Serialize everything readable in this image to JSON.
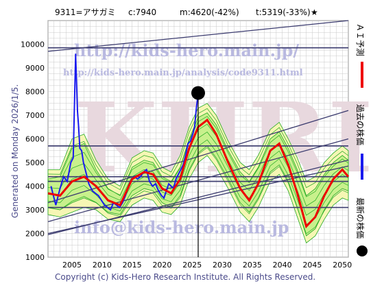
{
  "header": {
    "code_name": "9311=アサガミ",
    "current": "c:7940",
    "mid": "m:4620(-42%)",
    "target": "t:5319(-33%)",
    "star": "★"
  },
  "generated_text": "Generated on Monday 2026/1/5.",
  "footer_text": "Copyright (c) Kids-Hero Research Institute. All Rights Reserved.",
  "watermarks": {
    "url_main": "http://kids-hero.main.jp/",
    "url_page": "http://kids-hero.main.jp/analysis/code9311.html",
    "big": "KHRI",
    "email": "info@kids-hero.main.jp"
  },
  "legend": {
    "ai_forecast": "ＡＩ予測",
    "past_price": "過去の株価",
    "latest_price": "最新の株価"
  },
  "colors": {
    "ai_forecast": "#ee0000",
    "past_price": "#1a1aee",
    "latest_price": "#000000",
    "band_fill": "#c8f08c",
    "band_outer_fill": "#f6f6b4",
    "band_lines": "#22aa22",
    "trend_lines": "#3a3a6e",
    "grid": "#c8c8c8"
  },
  "chart_data": {
    "type": "line",
    "xlim": [
      2001,
      2051
    ],
    "ylim": [
      1000,
      11000
    ],
    "x_ticks": [
      2005,
      2010,
      2015,
      2020,
      2025,
      2030,
      2035,
      2040,
      2045,
      2050
    ],
    "y_ticks": [
      1000,
      2000,
      3000,
      4000,
      5000,
      6000,
      7000,
      8000,
      9000,
      10000
    ],
    "x_tick_labels": [
      "2005",
      "2010",
      "2015",
      "2020",
      "2025",
      "2030",
      "2035",
      "2040",
      "2045",
      "2050"
    ],
    "y_tick_labels": [
      "1000",
      "2000",
      "3000",
      "4000",
      "5000",
      "6000",
      "7000",
      "8000",
      "9000",
      "10000"
    ],
    "grid": true,
    "current_marker": {
      "x": 2026.0,
      "y": 7940
    },
    "series": [
      {
        "name": "過去の株価",
        "x": [
          2001.5,
          2002.3,
          2003.0,
          2003.6,
          2004.2,
          2004.8,
          2005.2,
          2005.6,
          2005.9,
          2006.1,
          2006.3,
          2006.6,
          2006.9,
          2007.3,
          2007.8,
          2008.4,
          2008.9,
          2009.4,
          2009.9,
          2010.4,
          2010.9,
          2011.4,
          2011.9,
          2012.4,
          2012.9,
          2013.4,
          2013.9,
          2014.4,
          2014.9,
          2015.4,
          2015.9,
          2016.4,
          2016.9,
          2017.4,
          2017.9,
          2018.4,
          2018.9,
          2019.4,
          2019.9,
          2020.3,
          2020.7,
          2021.1,
          2021.5,
          2021.9,
          2022.3,
          2022.7,
          2023.1,
          2023.5,
          2023.9,
          2024.3,
          2024.7,
          2025.1,
          2025.4,
          2025.7,
          2026.0
        ],
        "y": [
          4000,
          3200,
          3900,
          4400,
          4200,
          5000,
          5200,
          9600,
          7200,
          6500,
          5600,
          5500,
          5000,
          4600,
          4100,
          3800,
          3700,
          3600,
          3400,
          3200,
          3100,
          3000,
          3300,
          3200,
          3100,
          3300,
          3600,
          4000,
          4300,
          4400,
          4300,
          4400,
          4600,
          4700,
          4200,
          4000,
          4100,
          3800,
          3600,
          3500,
          3800,
          4100,
          4000,
          3900,
          4300,
          4500,
          4700,
          4900,
          5300,
          5800,
          5900,
          6200,
          6500,
          7300,
          7940
        ]
      },
      {
        "name": "ＡＩ予測",
        "x": [
          2001.0,
          2003.0,
          2005.0,
          2007.0,
          2009.0,
          2011.0,
          2013.0,
          2015.0,
          2017.0,
          2018.5,
          2020.0,
          2021.5,
          2023.0,
          2024.5,
          2026.0,
          2027.5,
          2029.0,
          2031.0,
          2033.0,
          2034.5,
          2036.0,
          2038.0,
          2039.5,
          2041.0,
          2042.5,
          2044.0,
          2045.5,
          2047.0,
          2048.5,
          2050.0,
          2051.0
        ],
        "y": [
          3700,
          3600,
          4200,
          4400,
          4000,
          3400,
          3200,
          4300,
          4600,
          4500,
          3900,
          3700,
          4300,
          5600,
          6500,
          6800,
          6200,
          5000,
          3900,
          3400,
          4100,
          5500,
          5800,
          4900,
          3700,
          2300,
          2700,
          3600,
          4300,
          4700,
          4400
        ]
      }
    ],
    "bands": {
      "upper": [
        4300,
        4400,
        5600,
        5800,
        4700,
        3900,
        3600,
        4800,
        5100,
        5000,
        4400,
        4200,
        4800,
        6000,
        6900,
        7100,
        6600,
        5500,
        4600,
        4200,
        4800,
        6000,
        6300,
        5600,
        4700,
        3600,
        3900,
        4500,
        5000,
        5300,
        5100
      ],
      "lower": [
        3100,
        3000,
        3300,
        3500,
        3300,
        2900,
        2800,
        3600,
        3900,
        3800,
        3300,
        3100,
        3600,
        4700,
        5400,
        5700,
        5200,
        4300,
        3300,
        2900,
        3500,
        4600,
        4900,
        4200,
        3100,
        1900,
        2200,
        3000,
        3600,
        3900,
        3800
      ],
      "outer_upper": [
        4700,
        4700,
        6000,
        6200,
        5100,
        4300,
        4000,
        5200,
        5500,
        5400,
        4800,
        4600,
        5300,
        6500,
        7300,
        7500,
        7000,
        5900,
        5000,
        4700,
        5300,
        6400,
        6700,
        6000,
        5200,
        4200,
        4400,
        5000,
        5400,
        5700,
        5500
      ],
      "outer_lower": [
        2800,
        2700,
        2900,
        3100,
        3000,
        2600,
        2500,
        3200,
        3500,
        3400,
        2900,
        2800,
        3200,
        4300,
        5000,
        5300,
        4800,
        3900,
        2900,
        2500,
        3100,
        4200,
        4500,
        3800,
        2700,
        1600,
        1900,
        2600,
        3200,
        3500,
        3400
      ]
    },
    "horizontal_levels": [
      3100,
      4200,
      4400,
      5700,
      9850
    ],
    "trend_lines": [
      {
        "x": [
          2001,
          2051
        ],
        "y": [
          9700,
          11000
        ]
      },
      {
        "x": [
          2001,
          2051
        ],
        "y": [
          3300,
          7200
        ]
      },
      {
        "x": [
          2001,
          2051
        ],
        "y": [
          2500,
          6000
        ]
      },
      {
        "x": [
          2001,
          2051
        ],
        "y": [
          1950,
          5100
        ]
      },
      {
        "x": [
          2001,
          2051
        ],
        "y": [
          2000,
          4850
        ]
      }
    ]
  }
}
